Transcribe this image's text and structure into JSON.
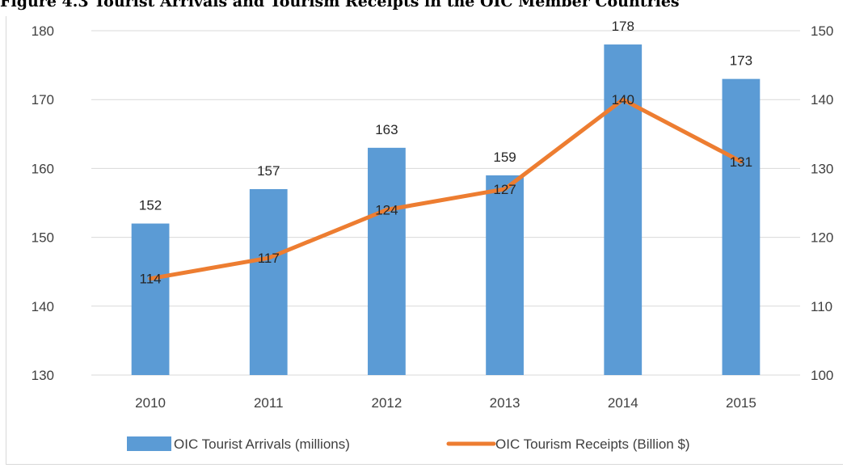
{
  "figure_title": "Figure 4.3 Tourist Arrivals and Tourism Receipts in the OIC Member Countries",
  "colors": {
    "bar": "#5b9bd5",
    "line": "#ed7d31",
    "grid": "#d9d9d9",
    "text": "#404040"
  },
  "chart_data": {
    "type": "bar",
    "combo_with": "line",
    "title": "",
    "categories": [
      "2010",
      "2011",
      "2012",
      "2013",
      "2014",
      "2015"
    ],
    "series": [
      {
        "name": "OIC Tourist Arrivals (millions)",
        "type": "bar",
        "axis": "left",
        "values": [
          152,
          157,
          163,
          159,
          178,
          173
        ],
        "data_labels": [
          "152",
          "157",
          "163",
          "159",
          "178",
          "173"
        ]
      },
      {
        "name": "OIC Tourism Receipts (Billion $)",
        "type": "line",
        "axis": "right",
        "values": [
          114,
          117,
          124,
          127,
          140,
          131
        ],
        "data_labels": [
          "114",
          "117",
          "124",
          "127",
          "140",
          "131"
        ]
      }
    ],
    "y_left": {
      "ylim": [
        130,
        180
      ],
      "ticks": [
        130,
        140,
        150,
        160,
        170,
        180
      ],
      "tick_labels": [
        "130",
        "140",
        "150",
        "160",
        "170",
        "180"
      ]
    },
    "y_right": {
      "ylim": [
        100,
        150
      ],
      "ticks": [
        100,
        110,
        120,
        130,
        140,
        150
      ],
      "tick_labels": [
        "100",
        "110",
        "120",
        "130",
        "140",
        "150"
      ]
    },
    "grid": true,
    "legend_position": "bottom"
  }
}
